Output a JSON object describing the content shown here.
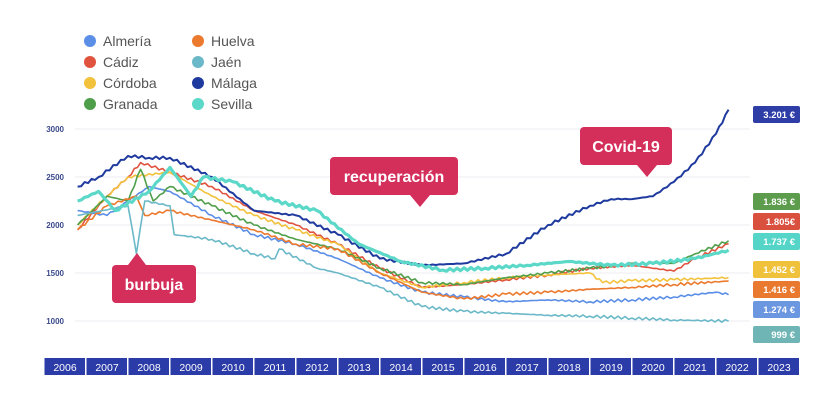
{
  "chart_data": {
    "type": "line",
    "xlim": [
      2006,
      2024
    ],
    "ylim": [
      1000,
      3000
    ],
    "y_ticks": [
      "3000",
      "2500",
      "2000",
      "1500",
      "1000"
    ],
    "y_tick_values": [
      3000,
      2500,
      2000,
      1500,
      1000
    ],
    "x_ticks": [
      "2006",
      "2007",
      "2008",
      "2009",
      "2010",
      "2011",
      "2012",
      "2013",
      "2014",
      "2015",
      "2016",
      "2017",
      "2018",
      "2019",
      "2020",
      "2021",
      "2022",
      "2023"
    ],
    "grid": true,
    "legend_position": "top-left",
    "series": [
      {
        "name": "Almería",
        "color": "#5b8ee6",
        "end_label": "1.274 €",
        "label_color": "#6b96e0",
        "points": [
          [
            2006.8,
            2150
          ],
          [
            2007.5,
            2100
          ],
          [
            2008.5,
            2400
          ],
          [
            2009,
            2350
          ],
          [
            2010,
            2100
          ],
          [
            2011,
            1900
          ],
          [
            2012,
            1800
          ],
          [
            2013,
            1650
          ],
          [
            2014,
            1450
          ],
          [
            2015,
            1300
          ],
          [
            2016,
            1250
          ],
          [
            2017,
            1200
          ],
          [
            2018,
            1220
          ],
          [
            2019,
            1200
          ],
          [
            2020,
            1220
          ],
          [
            2021,
            1250
          ],
          [
            2022,
            1300
          ],
          [
            2022.3,
            1274
          ]
        ]
      },
      {
        "name": "Cádiz",
        "color": "#e0533f",
        "end_label": "1.805€",
        "label_color": "#d9503f",
        "points": [
          [
            2006.8,
            1950
          ],
          [
            2007.5,
            2300
          ],
          [
            2008,
            2500
          ],
          [
            2008.3,
            2650
          ],
          [
            2009,
            2550
          ],
          [
            2010,
            2400
          ],
          [
            2011,
            2150
          ],
          [
            2012,
            2000
          ],
          [
            2013,
            1800
          ],
          [
            2014,
            1550
          ],
          [
            2015,
            1350
          ],
          [
            2016,
            1380
          ],
          [
            2017,
            1430
          ],
          [
            2018,
            1480
          ],
          [
            2019,
            1550
          ],
          [
            2020,
            1580
          ],
          [
            2021,
            1520
          ],
          [
            2021.5,
            1650
          ],
          [
            2022.3,
            1805
          ]
        ]
      },
      {
        "name": "Córdoba",
        "color": "#f2c23c",
        "end_label": "1.452 €",
        "label_color": "#f0c23c",
        "points": [
          [
            2006.8,
            2000
          ],
          [
            2007.5,
            2300
          ],
          [
            2008,
            2500
          ],
          [
            2009,
            2550
          ],
          [
            2010,
            2300
          ],
          [
            2011,
            2100
          ],
          [
            2012,
            1950
          ],
          [
            2013,
            1800
          ],
          [
            2014,
            1500
          ],
          [
            2015,
            1350
          ],
          [
            2016,
            1400
          ],
          [
            2017,
            1450
          ],
          [
            2018,
            1480
          ],
          [
            2019,
            1500
          ],
          [
            2019.3,
            1400
          ],
          [
            2020,
            1420
          ],
          [
            2021,
            1430
          ],
          [
            2022.3,
            1452
          ]
        ]
      },
      {
        "name": "Granada",
        "color": "#4f9e4a",
        "end_label": "1.836 €",
        "label_color": "#5d9c4c",
        "points": [
          [
            2006.8,
            2000
          ],
          [
            2007.5,
            2300
          ],
          [
            2008,
            2250
          ],
          [
            2008.3,
            2580
          ],
          [
            2008.6,
            2250
          ],
          [
            2009,
            2400
          ],
          [
            2010,
            2200
          ],
          [
            2011,
            2000
          ],
          [
            2012,
            1850
          ],
          [
            2013,
            1750
          ],
          [
            2014,
            1550
          ],
          [
            2015,
            1400
          ],
          [
            2016,
            1380
          ],
          [
            2017,
            1450
          ],
          [
            2018,
            1500
          ],
          [
            2019,
            1550
          ],
          [
            2020,
            1600
          ],
          [
            2021,
            1600
          ],
          [
            2021.5,
            1700
          ],
          [
            2022.3,
            1836
          ]
        ]
      },
      {
        "name": "Huelva",
        "color": "#eb7a2e",
        "end_label": "1.416 €",
        "label_color": "#e8792f",
        "points": [
          [
            2006.8,
            1950
          ],
          [
            2007.5,
            2200
          ],
          [
            2008.2,
            2300
          ],
          [
            2008.4,
            2100
          ],
          [
            2009,
            2150
          ],
          [
            2010,
            2050
          ],
          [
            2011,
            1950
          ],
          [
            2012,
            1800
          ],
          [
            2013,
            1750
          ],
          [
            2014,
            1500
          ],
          [
            2015,
            1300
          ],
          [
            2016,
            1230
          ],
          [
            2017,
            1280
          ],
          [
            2018,
            1300
          ],
          [
            2019,
            1330
          ],
          [
            2020,
            1350
          ],
          [
            2021,
            1380
          ],
          [
            2022.3,
            1416
          ]
        ]
      },
      {
        "name": "Jaén",
        "color": "#6bb9c8",
        "end_label": "999 €",
        "label_color": "#6fb5b5",
        "points": [
          [
            2006.8,
            2100
          ],
          [
            2008,
            2200
          ],
          [
            2008.2,
            1700
          ],
          [
            2008.4,
            2250
          ],
          [
            2009,
            2200
          ],
          [
            2009.1,
            1900
          ],
          [
            2010,
            1850
          ],
          [
            2011,
            1700
          ],
          [
            2011.5,
            1650
          ],
          [
            2011.6,
            1750
          ],
          [
            2012.5,
            1550
          ],
          [
            2013,
            1500
          ],
          [
            2014,
            1350
          ],
          [
            2015,
            1150
          ],
          [
            2016,
            1100
          ],
          [
            2017,
            1080
          ],
          [
            2018,
            1060
          ],
          [
            2019,
            1050
          ],
          [
            2020,
            1030
          ],
          [
            2021,
            1010
          ],
          [
            2022.3,
            999
          ]
        ]
      },
      {
        "name": "Málaga",
        "color": "#1f3a9e",
        "end_label": "3.201 €",
        "label_color": "#2f3ea6",
        "points": [
          [
            2006.8,
            2400
          ],
          [
            2007.3,
            2500
          ],
          [
            2008,
            2720
          ],
          [
            2008.5,
            2700
          ],
          [
            2009,
            2700
          ],
          [
            2010,
            2500
          ],
          [
            2011,
            2150
          ],
          [
            2012,
            2100
          ],
          [
            2013,
            1900
          ],
          [
            2014,
            1650
          ],
          [
            2015,
            1580
          ],
          [
            2016,
            1600
          ],
          [
            2017,
            1700
          ],
          [
            2018,
            2000
          ],
          [
            2019,
            2200
          ],
          [
            2019.5,
            2270
          ],
          [
            2020,
            2270
          ],
          [
            2020.5,
            2300
          ],
          [
            2021,
            2450
          ],
          [
            2021.5,
            2650
          ],
          [
            2022,
            2950
          ],
          [
            2022.3,
            3201
          ]
        ]
      },
      {
        "name": "Sevilla",
        "color": "#5bd8c8",
        "end_label": "1.737 €",
        "label_color": "#55d5c8",
        "points": [
          [
            2006.8,
            2250
          ],
          [
            2007.3,
            2350
          ],
          [
            2007.7,
            2150
          ],
          [
            2008.5,
            2350
          ],
          [
            2009,
            2600
          ],
          [
            2009.5,
            2300
          ],
          [
            2009.8,
            2500
          ],
          [
            2010.5,
            2450
          ],
          [
            2011.5,
            2250
          ],
          [
            2012.5,
            2150
          ],
          [
            2013.5,
            1800
          ],
          [
            2014.5,
            1620
          ],
          [
            2015.5,
            1530
          ],
          [
            2016.5,
            1550
          ],
          [
            2017.5,
            1580
          ],
          [
            2018.5,
            1620
          ],
          [
            2019.5,
            1580
          ],
          [
            2020.5,
            1600
          ],
          [
            2021.5,
            1650
          ],
          [
            2022.3,
            1737
          ]
        ]
      }
    ],
    "annotations": [
      {
        "text": "burbuja",
        "pointer": "up"
      },
      {
        "text": "recuperación",
        "pointer": "down"
      },
      {
        "text": "Covid-19",
        "pointer": "down"
      }
    ],
    "annotation_color": "#d42e5b",
    "axis_bar_color": "#2b3ca8"
  }
}
